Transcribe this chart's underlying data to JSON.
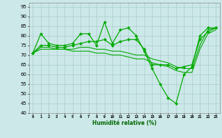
{
  "xlabel": "Humidité relative (%)",
  "background_color": "#cce8e8",
  "grid_color": "#aacccc",
  "line_color": "#00aa00",
  "ylim": [
    40,
    97
  ],
  "xlim": [
    -0.5,
    23.5
  ],
  "yticks": [
    40,
    45,
    50,
    55,
    60,
    65,
    70,
    75,
    80,
    85,
    90,
    95
  ],
  "xticks": [
    0,
    1,
    2,
    3,
    4,
    5,
    6,
    7,
    8,
    9,
    10,
    11,
    12,
    13,
    14,
    15,
    16,
    17,
    18,
    19,
    20,
    21,
    22,
    23
  ],
  "series": [
    {
      "x": [
        0,
        1,
        2,
        3,
        4,
        5,
        6,
        7,
        8,
        9,
        10,
        11,
        12,
        13,
        14,
        15,
        16,
        17,
        18,
        19,
        20,
        21,
        22,
        23
      ],
      "y": [
        71,
        81,
        76,
        75,
        75,
        76,
        81,
        81,
        75,
        87,
        76,
        83,
        84,
        80,
        72,
        63,
        55,
        48,
        45,
        60,
        64,
        80,
        84,
        84
      ],
      "marker": "D",
      "markersize": 2,
      "linewidth": 0.9,
      "linestyle": "-"
    },
    {
      "x": [
        0,
        1,
        2,
        3,
        4,
        5,
        6,
        7,
        8,
        9,
        10,
        11,
        12,
        13,
        14,
        15,
        16,
        17,
        18,
        19,
        20,
        21,
        22,
        23
      ],
      "y": [
        71,
        75,
        75,
        74,
        74,
        75,
        76,
        77,
        77,
        78,
        75,
        77,
        78,
        78,
        73,
        65,
        65,
        65,
        63,
        64,
        65,
        78,
        82,
        84
      ],
      "marker": "D",
      "markersize": 2,
      "linewidth": 0.9,
      "linestyle": "-"
    },
    {
      "x": [
        0,
        1,
        2,
        3,
        4,
        5,
        6,
        7,
        8,
        9,
        10,
        11,
        12,
        13,
        14,
        15,
        16,
        17,
        18,
        19,
        20,
        21,
        22,
        23
      ],
      "y": [
        71,
        74,
        74,
        73,
        73,
        73,
        74,
        74,
        73,
        73,
        72,
        72,
        71,
        70,
        70,
        68,
        67,
        66,
        64,
        63,
        63,
        75,
        83,
        84
      ],
      "marker": null,
      "markersize": 0,
      "linewidth": 0.8,
      "linestyle": "-"
    },
    {
      "x": [
        0,
        1,
        2,
        3,
        4,
        5,
        6,
        7,
        8,
        9,
        10,
        11,
        12,
        13,
        14,
        15,
        16,
        17,
        18,
        19,
        20,
        21,
        22,
        23
      ],
      "y": [
        71,
        73,
        73,
        73,
        73,
        72,
        72,
        72,
        71,
        71,
        70,
        70,
        69,
        68,
        68,
        66,
        65,
        64,
        62,
        61,
        61,
        73,
        81,
        83
      ],
      "marker": null,
      "markersize": 0,
      "linewidth": 0.8,
      "linestyle": "-"
    }
  ]
}
